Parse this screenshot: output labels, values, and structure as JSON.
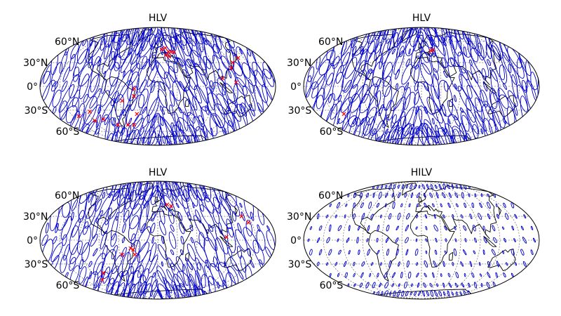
{
  "panels": [
    {
      "title": "HLV",
      "lat_labels": [
        "60°N",
        "30°N",
        "0°",
        "30°S",
        "60°S"
      ],
      "ellipse_scale": 1.0,
      "ellipse_colour": "#0000cc",
      "marker_colour": "#ff0000",
      "stations": [
        [
          -56,
          -18
        ],
        [
          -37,
          -12
        ],
        [
          -36,
          -3
        ],
        [
          -36,
          -35
        ],
        [
          -48,
          -50
        ],
        [
          -60,
          -50
        ],
        [
          -80,
          -50
        ],
        [
          -100,
          -42
        ],
        [
          -118,
          -44
        ],
        [
          -140,
          -38
        ],
        [
          -115,
          -32
        ],
        [
          8,
          48
        ],
        [
          15,
          50
        ],
        [
          20,
          45
        ],
        [
          25,
          44
        ],
        [
          30,
          44
        ],
        [
          20,
          38
        ],
        [
          15,
          40
        ],
        [
          118,
          23
        ],
        [
          125,
          30
        ],
        [
          140,
          36
        ],
        [
          120,
          5
        ],
        [
          100,
          10
        ]
      ]
    },
    {
      "title": "HLV",
      "lat_labels": [
        "60°N",
        "30°N",
        "0°",
        "30°S",
        "60°S"
      ],
      "ellipse_scale": 0.95,
      "ellipse_colour": "#0000cc",
      "marker_colour": "#ff0000",
      "stations": [
        [
          18,
          46
        ],
        [
          22,
          47
        ],
        [
          -134,
          -35
        ]
      ]
    },
    {
      "title": "HLV",
      "lat_labels": [
        "60°N",
        "30°N",
        "0°",
        "30°S",
        "60°S"
      ],
      "ellipse_scale": 0.8,
      "ellipse_colour": "#0000cc",
      "marker_colour": "#ff0000",
      "stations": [
        [
          -56,
          -18
        ],
        [
          -38,
          -12
        ],
        [
          -36,
          -18
        ],
        [
          -42,
          -10
        ],
        [
          -100,
          -42
        ],
        [
          -115,
          -52
        ],
        [
          18,
          46
        ],
        [
          25,
          44
        ],
        [
          140,
          30
        ],
        [
          145,
          22
        ],
        [
          105,
          4
        ]
      ]
    },
    {
      "title": "HILV",
      "lat_labels": [
        "60°N",
        "30°N",
        "0°",
        "30°S",
        "60°S"
      ],
      "ellipse_scale": 0.18,
      "ellipse_colour": "#0000cc",
      "marker_colour": "#ff0000",
      "stations": []
    }
  ]
}
